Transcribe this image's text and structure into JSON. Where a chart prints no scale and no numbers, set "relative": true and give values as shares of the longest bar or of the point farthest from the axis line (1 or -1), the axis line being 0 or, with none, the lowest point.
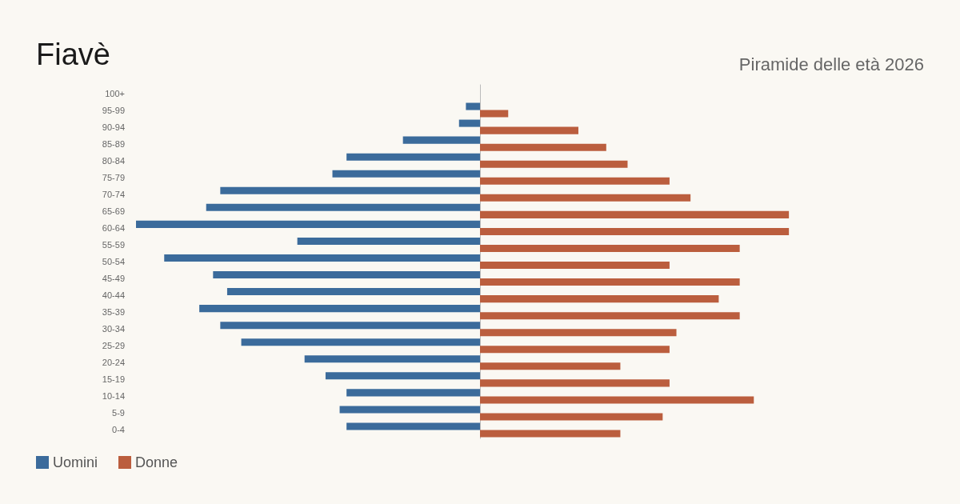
{
  "chart_data": {
    "type": "bar",
    "title": "Fiavè",
    "subtitle": "Piramide delle età 2026",
    "orientation": "horizontal",
    "relative": true,
    "legend": "bottom left",
    "categories": [
      "100+",
      "95-99",
      "90-94",
      "85-89",
      "80-84",
      "75-79",
      "70-74",
      "65-69",
      "60-64",
      "55-59",
      "50-54",
      "45-49",
      "40-44",
      "35-39",
      "30-34",
      "25-29",
      "20-24",
      "15-19",
      "10-14",
      "5-9",
      "0-4"
    ],
    "series": [
      {
        "name": "Uomini",
        "color": "#3b6b9b",
        "values": [
          0,
          -0.041,
          -0.061,
          -0.224,
          -0.388,
          -0.429,
          -0.755,
          -0.796,
          -1,
          -0.531,
          -0.918,
          -0.776,
          -0.735,
          -0.816,
          -0.755,
          -0.694,
          -0.51,
          -0.449,
          -0.388,
          -0.408,
          -0.388
        ]
      },
      {
        "name": "Donne",
        "color": "#bb5e3e",
        "values": [
          0,
          0.082,
          0.286,
          0.367,
          0.429,
          0.551,
          0.612,
          0.898,
          0.898,
          0.755,
          0.551,
          0.755,
          0.694,
          0.755,
          0.571,
          0.551,
          0.408,
          0.551,
          0.796,
          0.531,
          0.408
        ]
      }
    ]
  }
}
